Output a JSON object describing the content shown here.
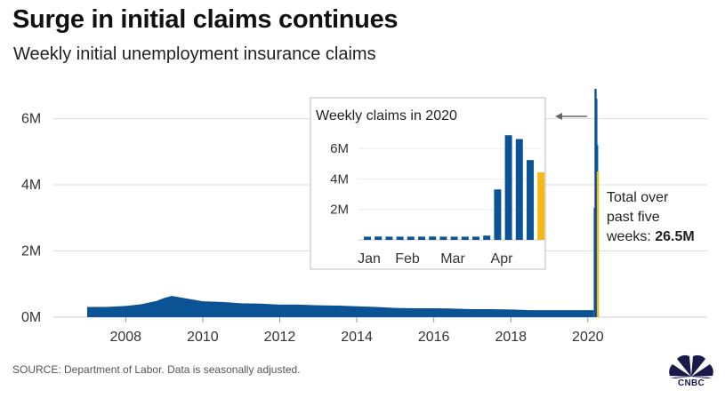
{
  "title": "Surge in initial claims continues",
  "subtitle": "Weekly initial unemployment insurance claims",
  "annotation": {
    "line1": "Total over",
    "line2": "past five",
    "line3_prefix": "weeks: ",
    "line3_value": "26.5M"
  },
  "source": "SOURCE: Department of Labor. Data is seasonally adjusted.",
  "logo_text": "CNBC",
  "logo_icon": "cnbc-peacock-icon",
  "colors": {
    "bar": "#0b5394",
    "highlight": "#f4b914",
    "grid": "#dddddd",
    "text": "#222222"
  },
  "chart_data": [
    {
      "type": "area",
      "title": "",
      "xlabel": "",
      "ylabel": "",
      "x_ticks": [
        "2008",
        "2010",
        "2012",
        "2014",
        "2016",
        "2018",
        "2020"
      ],
      "y_ticks": [
        "0M",
        "2M",
        "4M",
        "6M"
      ],
      "xlim": [
        2007.0,
        2020.35
      ],
      "ylim": [
        0,
        6.9
      ],
      "grid": "horizontal",
      "series": [
        {
          "x": [
            2007.0,
            2007.5,
            2008.0,
            2008.4,
            2008.8,
            2009.0,
            2009.2,
            2009.5,
            2010.0,
            2010.5,
            2011.0,
            2011.5,
            2012.0,
            2012.5,
            2013.0,
            2013.5,
            2014.0,
            2014.5,
            2015.0,
            2015.5,
            2016.0,
            2016.5,
            2017.0,
            2017.5,
            2018.0,
            2018.5,
            2019.0,
            2019.5,
            2020.0,
            2020.15
          ],
          "values": [
            0.31,
            0.31,
            0.34,
            0.39,
            0.49,
            0.58,
            0.64,
            0.58,
            0.48,
            0.46,
            0.42,
            0.41,
            0.38,
            0.38,
            0.36,
            0.35,
            0.33,
            0.31,
            0.28,
            0.27,
            0.27,
            0.26,
            0.24,
            0.24,
            0.23,
            0.21,
            0.21,
            0.21,
            0.21,
            0.21
          ]
        }
      ],
      "spike": {
        "x": [
          2020.18,
          2020.2,
          2020.22,
          2020.24
        ],
        "values": [
          3.3,
          6.9,
          6.6,
          5.2
        ],
        "highlight_x": [
          2020.26
        ],
        "highlight_values": [
          4.4
        ]
      }
    },
    {
      "type": "bar",
      "title": "Weekly claims in 2020",
      "x_ticks": [
        "Jan",
        "Feb",
        "Mar",
        "Apr"
      ],
      "y_ticks": [
        "2M",
        "4M",
        "6M"
      ],
      "ylim": [
        0,
        7
      ],
      "values": [
        0.21,
        0.22,
        0.21,
        0.21,
        0.21,
        0.21,
        0.22,
        0.21,
        0.21,
        0.21,
        0.21,
        0.28,
        3.31,
        6.87,
        6.62,
        5.24,
        4.43
      ],
      "highlight_index": 16
    }
  ]
}
